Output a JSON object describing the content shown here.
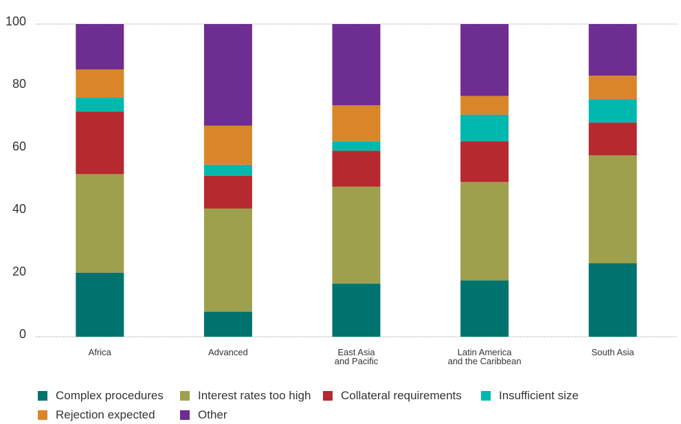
{
  "chart_data": {
    "type": "stacked_bar",
    "categories": [
      "Africa",
      "Advanced",
      "East Asia\nand Pacific",
      "Latin America\nand the Caribbean",
      "South Asia"
    ],
    "series": [
      {
        "name": "Complex procedures",
        "color": "#00736e",
        "values": [
          20.5,
          8,
          17,
          18,
          23.5
        ]
      },
      {
        "name": "Interest rates too high",
        "color": "#9ea04e",
        "values": [
          31.5,
          33,
          31,
          31.5,
          34.5
        ]
      },
      {
        "name": "Collateral requirements",
        "color": "#b5292f",
        "values": [
          20,
          10.5,
          11.5,
          13,
          10.5
        ]
      },
      {
        "name": "Insufficient size",
        "color": "#00b8ad",
        "values": [
          4.5,
          3.5,
          3,
          8.5,
          7.5
        ]
      },
      {
        "name": "Rejection expected",
        "color": "#d9862a",
        "values": [
          9,
          12.5,
          11.5,
          6,
          7.5
        ]
      },
      {
        "name": "Other",
        "color": "#6e2d91",
        "values": [
          14.5,
          32.5,
          26,
          23,
          16.5
        ]
      }
    ],
    "ylim": [
      0,
      100
    ],
    "yticks": [
      0,
      20,
      40,
      60,
      80,
      100
    ],
    "grid": false
  }
}
